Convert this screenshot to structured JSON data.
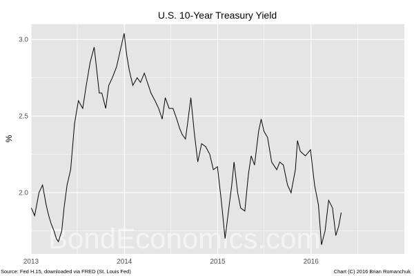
{
  "chart_data": {
    "type": "line",
    "title": "U.S. 10-Year Treasury Yield",
    "xlabel": "",
    "ylabel": "%",
    "x_ticks": [
      "2013",
      "2014",
      "2015",
      "2016"
    ],
    "y_ticks": [
      "2.0",
      "2.5",
      "3.0"
    ],
    "xlim": [
      "2013-01-01",
      "2016-12-31"
    ],
    "ylim": [
      1.6,
      3.1
    ],
    "grid": true,
    "legend": "none",
    "line_color": "#000000",
    "panel_background": "#e5e5e5",
    "grid_color": "#ffffff",
    "series": [
      {
        "x": [
          "2013-01-02",
          "2013-01-15",
          "2013-02-01",
          "2013-02-15",
          "2013-03-01",
          "2013-03-11",
          "2013-03-20",
          "2013-04-01",
          "2013-04-10",
          "2013-04-18",
          "2013-05-01",
          "2013-05-10",
          "2013-05-22",
          "2013-06-05",
          "2013-06-20",
          "2013-07-05",
          "2013-07-22",
          "2013-08-05",
          "2013-08-20",
          "2013-09-05",
          "2013-09-15",
          "2013-09-25",
          "2013-10-05",
          "2013-10-20",
          "2013-11-01",
          "2013-11-15",
          "2013-12-01",
          "2013-12-31",
          "2014-01-10",
          "2014-01-20",
          "2014-02-03",
          "2014-02-20",
          "2014-03-05",
          "2014-03-20",
          "2014-04-01",
          "2014-04-15",
          "2014-05-01",
          "2014-05-15",
          "2014-05-29",
          "2014-06-10",
          "2014-06-25",
          "2014-07-10",
          "2014-07-25",
          "2014-08-05",
          "2014-08-15",
          "2014-08-28",
          "2014-09-05",
          "2014-09-18",
          "2014-10-01",
          "2014-10-15",
          "2014-10-30",
          "2014-11-15",
          "2014-12-01",
          "2014-12-15",
          "2014-12-31",
          "2015-01-15",
          "2015-01-30",
          "2015-02-10",
          "2015-02-25",
          "2015-03-06",
          "2015-03-20",
          "2015-04-01",
          "2015-04-17",
          "2015-05-01",
          "2015-05-12",
          "2015-05-25",
          "2015-06-10",
          "2015-06-20",
          "2015-07-01",
          "2015-07-15",
          "2015-07-31",
          "2015-08-20",
          "2015-09-01",
          "2015-09-15",
          "2015-10-01",
          "2015-10-15",
          "2015-11-01",
          "2015-11-09",
          "2015-11-20",
          "2015-12-10",
          "2015-12-30",
          "2016-01-15",
          "2016-01-30",
          "2016-02-11",
          "2016-02-25",
          "2016-03-10",
          "2016-03-25",
          "2016-04-07",
          "2016-04-18",
          "2016-04-28"
        ],
        "values": [
          1.9,
          1.85,
          2.0,
          2.05,
          1.92,
          1.85,
          1.8,
          1.75,
          1.7,
          1.68,
          1.75,
          1.9,
          2.05,
          2.15,
          2.45,
          2.6,
          2.55,
          2.7,
          2.85,
          2.95,
          2.8,
          2.65,
          2.65,
          2.55,
          2.7,
          2.75,
          2.82,
          3.04,
          2.9,
          2.8,
          2.7,
          2.75,
          2.72,
          2.78,
          2.72,
          2.65,
          2.6,
          2.55,
          2.48,
          2.62,
          2.55,
          2.55,
          2.48,
          2.42,
          2.38,
          2.35,
          2.45,
          2.62,
          2.4,
          2.2,
          2.32,
          2.3,
          2.25,
          2.15,
          2.17,
          1.95,
          1.7,
          1.85,
          2.05,
          2.2,
          2.0,
          1.9,
          1.88,
          2.12,
          2.24,
          2.18,
          2.4,
          2.48,
          2.4,
          2.36,
          2.2,
          2.15,
          2.2,
          2.18,
          2.05,
          2.0,
          2.15,
          2.34,
          2.27,
          2.24,
          2.28,
          2.05,
          1.92,
          1.66,
          1.75,
          1.95,
          1.9,
          1.72,
          1.78,
          1.87
        ]
      }
    ]
  },
  "watermark": "BondEconomics.com",
  "caption_left": "Source: Fed H.15, downloaded via FRED (St. Louis Fed)",
  "caption_right": "Chart (C) 2016 Brian Romanchuk"
}
